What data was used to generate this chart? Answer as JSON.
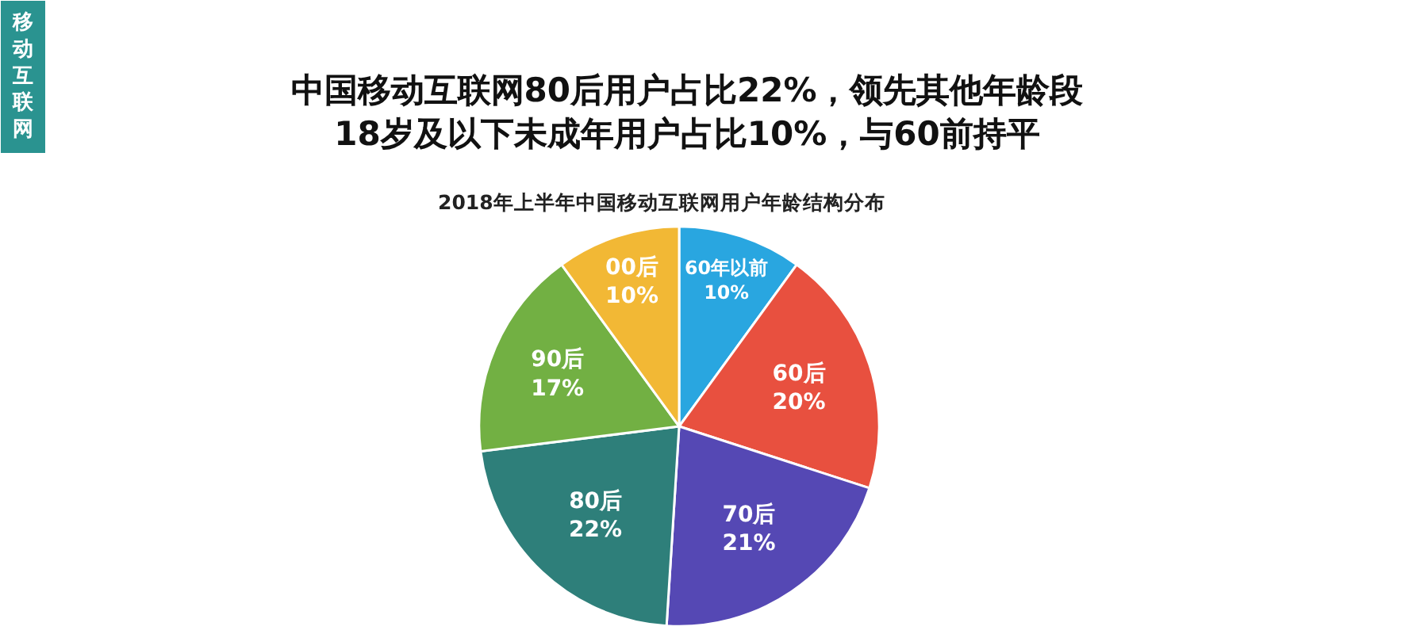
{
  "chart_data": {
    "type": "pie",
    "title": "中国移动互联网80后用户占比22%，领先其他年龄段\n18岁及以下未成年用户占比10%，与60前持平",
    "subtitle": "2018年上半年中国移动互联网用户年龄结构分布",
    "annotations": [
      "移动互联网"
    ],
    "categories": [
      "60年以前",
      "60后",
      "70后",
      "80后",
      "90后",
      "00后"
    ],
    "values": [
      10,
      20,
      21,
      22,
      17,
      10
    ],
    "value_labels": [
      "10%",
      "20%",
      "21%",
      "22%",
      "17%",
      "10%"
    ],
    "colors": [
      "#29a6e0",
      "#e8503f",
      "#5548b4",
      "#2e7f7a",
      "#72b043",
      "#f2b835"
    ],
    "legend": false
  }
}
